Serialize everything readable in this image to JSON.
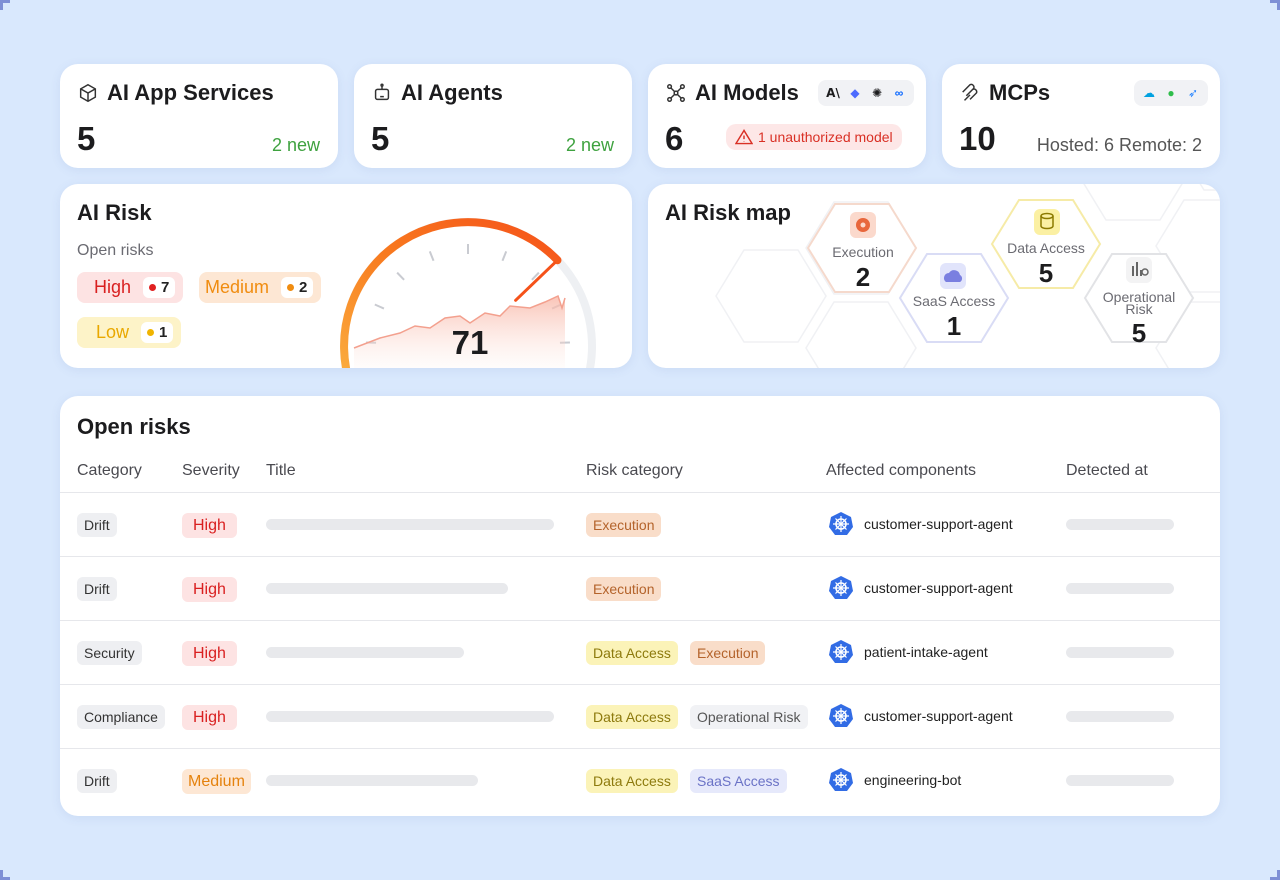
{
  "cards": {
    "services": {
      "title": "AI App Services",
      "value": "5",
      "sub": "2 new"
    },
    "agents": {
      "title": "AI Agents",
      "value": "5",
      "sub": "2 new"
    },
    "models": {
      "title": "AI Models",
      "value": "6",
      "alert": "1 unauthorized model",
      "logos": [
        "anthropic-logo",
        "deepseek-logo",
        "openai-logo",
        "meta-logo"
      ]
    },
    "mcps": {
      "title": "MCPs",
      "value": "10",
      "sub": "Hosted: 6 Remote: 2",
      "logos": [
        "salesforce-logo",
        "atlassian-logo",
        "jira-logo"
      ]
    }
  },
  "ai_risk": {
    "title": "AI Risk",
    "subtitle": "Open risks",
    "levels": [
      {
        "label": "High",
        "count": "7",
        "color": "#e02020"
      },
      {
        "label": "Medium",
        "count": "2",
        "color": "#f08c10"
      },
      {
        "label": "Low",
        "count": "1",
        "color": "#f0b400"
      }
    ],
    "score": "71",
    "score_fraction": 0.71
  },
  "risk_map": {
    "title": "AI Risk map",
    "cells": [
      {
        "label": "Execution",
        "count": "2",
        "icon": "execution-icon"
      },
      {
        "label": "SaaS Access",
        "count": "1",
        "icon": "cloud-icon"
      },
      {
        "label": "Data Access",
        "count": "5",
        "icon": "database-icon"
      },
      {
        "label": "Operational Risk",
        "count": "5",
        "icon": "operational-icon"
      }
    ]
  },
  "open_risks": {
    "title": "Open risks",
    "columns": [
      "Category",
      "Severity",
      "Title",
      "Risk category",
      "Affected components",
      "Detected at"
    ],
    "rows": [
      {
        "category": "Drift",
        "severity": "High",
        "risk": [
          "Execution"
        ],
        "component": "customer-support-agent"
      },
      {
        "category": "Drift",
        "severity": "High",
        "risk": [
          "Execution"
        ],
        "component": "customer-support-agent"
      },
      {
        "category": "Security",
        "severity": "High",
        "risk": [
          "Data Access",
          "Execution"
        ],
        "component": "patient-intake-agent"
      },
      {
        "category": "Compliance",
        "severity": "High",
        "risk": [
          "Data Access",
          "Operational Risk"
        ],
        "component": "customer-support-agent"
      },
      {
        "category": "Drift",
        "severity": "Medium",
        "risk": [
          "Data Access",
          "SaaS Access"
        ],
        "component": "engineering-bot"
      }
    ]
  }
}
